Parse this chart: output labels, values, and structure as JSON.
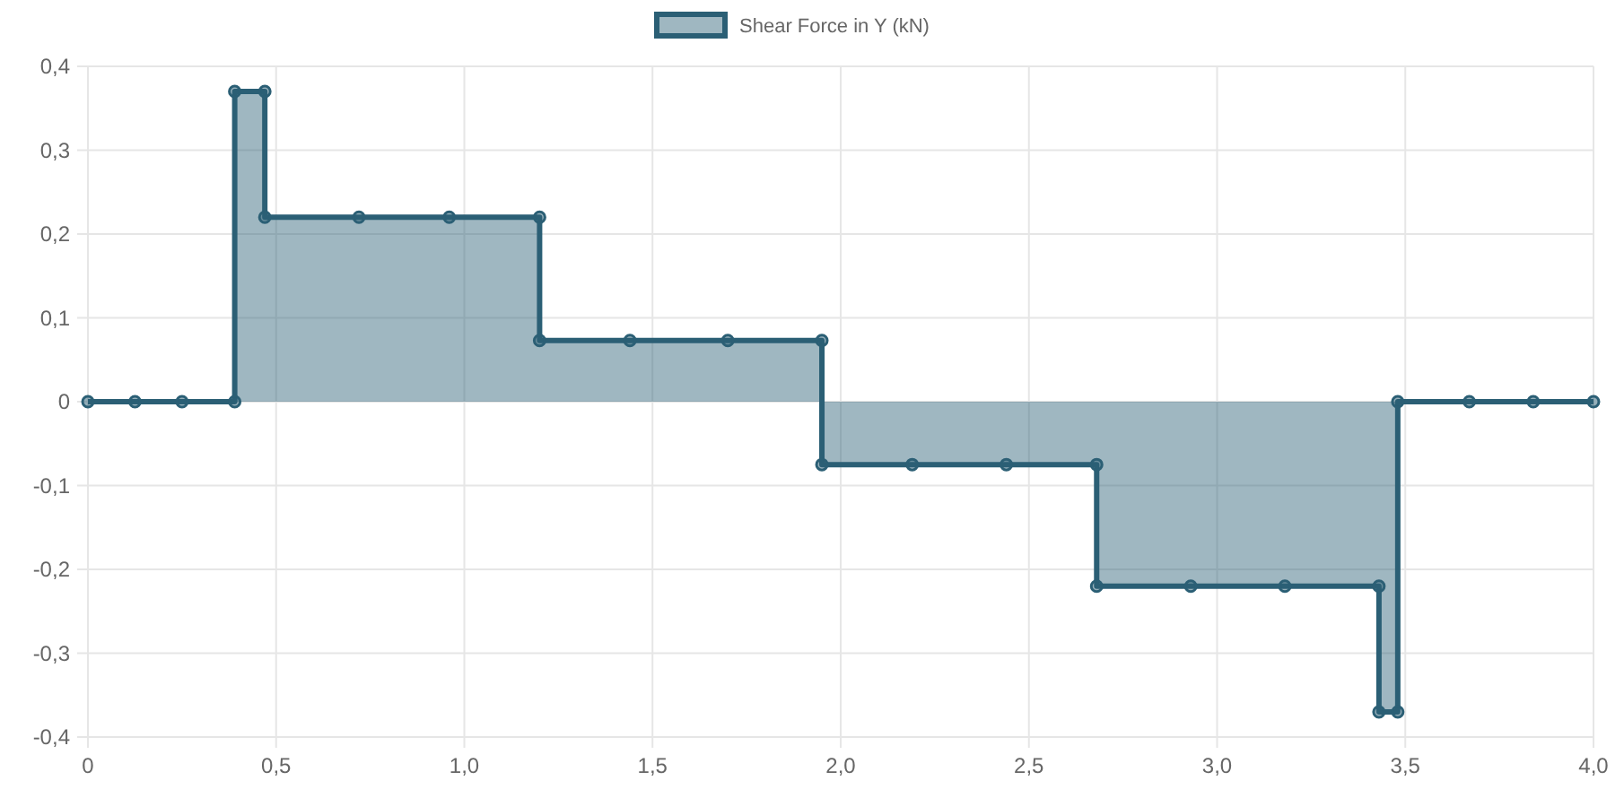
{
  "chart_data": {
    "type": "area",
    "legend": "top",
    "grid": true,
    "marker": "circle",
    "line_style": "solid",
    "xlim": [
      0,
      4
    ],
    "xticks": [
      0,
      {
        "value": 0.5,
        "label": "0,5"
      },
      {
        "value": 1,
        "label": "1,0"
      },
      {
        "value": 1.5,
        "label": "1,5"
      },
      {
        "value": 2,
        "label": "2,0"
      },
      {
        "value": 2.5,
        "label": "2,5"
      },
      {
        "value": 3,
        "label": "3,0"
      },
      {
        "value": 3.5,
        "label": "3,5"
      },
      {
        "value": 4,
        "label": "4,0"
      }
    ],
    "ylim": [
      -0.4,
      0.4
    ],
    "yticks": [
      {
        "value": -0.4,
        "label": "-0,4"
      },
      {
        "value": -0.3,
        "label": "-0,3"
      },
      {
        "value": -0.2,
        "label": "-0,2"
      },
      {
        "value": -0.1,
        "label": "-0,1"
      },
      0,
      {
        "value": 0.1,
        "label": "0,1"
      },
      {
        "value": 0.2,
        "label": "0,2"
      },
      {
        "value": 0.3,
        "label": "0,3"
      },
      {
        "value": 0.4,
        "label": "0,4"
      }
    ],
    "x": [
      0,
      0.125,
      0.25,
      0.39,
      0.39,
      0.47,
      0.47,
      0.72,
      0.96,
      1.2,
      1.2,
      1.44,
      1.7,
      1.95,
      1.95,
      2.19,
      2.44,
      2.68,
      2.68,
      2.93,
      3.18,
      3.43,
      3.43,
      3.48,
      3.48,
      3.67,
      3.84,
      4.0
    ],
    "series": [
      {
        "name": "Shear Force in Y (kN)",
        "color": "#2b5f75",
        "values": [
          0,
          0,
          0,
          0,
          0.37,
          0.37,
          0.22,
          0.22,
          0.22,
          0.22,
          0.073,
          0.073,
          0.073,
          0.073,
          -0.075,
          -0.075,
          -0.075,
          -0.075,
          -0.22,
          -0.22,
          -0.22,
          -0.22,
          -0.37,
          -0.37,
          0,
          0,
          0,
          0
        ]
      }
    ]
  }
}
